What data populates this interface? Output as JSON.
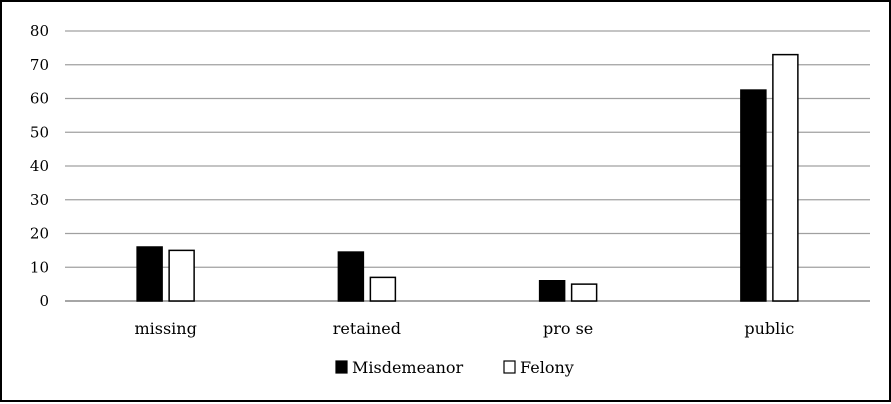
{
  "chart_data": {
    "type": "bar",
    "title": "",
    "xlabel": "",
    "ylabel": "",
    "categories": [
      "missing",
      "retained",
      "pro se",
      "public"
    ],
    "series": [
      {
        "name": "Misdemeanor",
        "values": [
          16,
          14.5,
          6,
          62.5
        ],
        "color": "#000000"
      },
      {
        "name": "Felony",
        "values": [
          15,
          7,
          5,
          73
        ],
        "color": "#ffffff"
      }
    ],
    "ylim": [
      0,
      80
    ],
    "yticks": [
      0,
      10,
      20,
      30,
      40,
      50,
      60,
      70,
      80
    ],
    "grid": true,
    "legend_position": "bottom-center"
  }
}
